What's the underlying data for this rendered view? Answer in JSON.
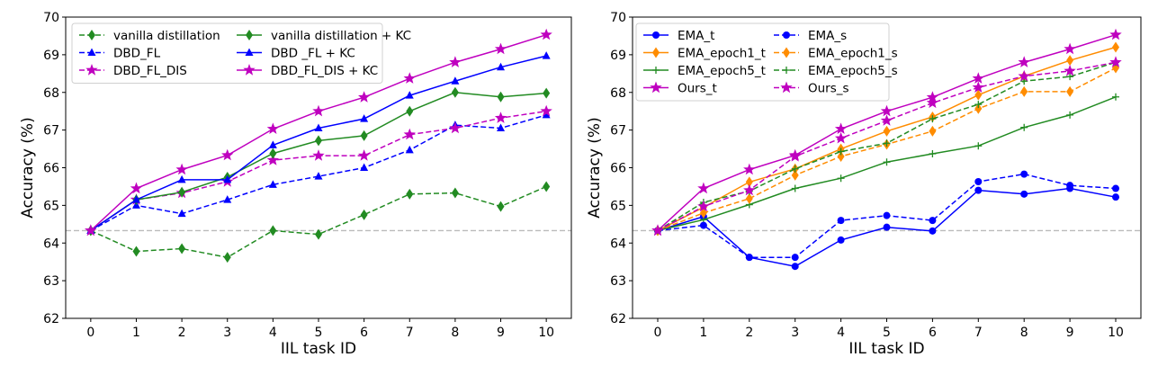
{
  "chart_data": [
    {
      "type": "line",
      "xlabel": "IIL task ID",
      "ylabel": "Accuracy (%)",
      "x": [
        0,
        1,
        2,
        3,
        4,
        5,
        6,
        7,
        8,
        9,
        10
      ],
      "xlim": [
        -0.55,
        10.55
      ],
      "ylim": [
        62,
        70
      ],
      "yticks": [
        62,
        63,
        64,
        65,
        66,
        67,
        68,
        69,
        70
      ],
      "grid": false,
      "legend_position": "top-left",
      "legend_columns": 2,
      "reference_line": {
        "y": 64.33,
        "color": "#bbbbbb",
        "style": "dashed"
      },
      "series": [
        {
          "name": "vanilla distillation",
          "color": "#228b22",
          "style": "dashed",
          "marker": "diamond",
          "values": [
            64.33,
            63.78,
            63.85,
            63.62,
            64.33,
            64.23,
            64.75,
            65.3,
            65.33,
            64.97,
            65.5
          ]
        },
        {
          "name": "DBD_FL",
          "color": "#0000ff",
          "style": "dashed",
          "marker": "triangle",
          "values": [
            64.33,
            65.0,
            64.78,
            65.15,
            65.55,
            65.77,
            66.0,
            66.47,
            67.13,
            67.05,
            67.4
          ]
        },
        {
          "name": "DBD_FL_DIS",
          "color": "#bf00bf",
          "style": "dashed",
          "marker": "star",
          "values": [
            64.33,
            65.15,
            65.33,
            65.63,
            66.2,
            66.32,
            66.32,
            66.88,
            67.05,
            67.32,
            67.5
          ]
        },
        {
          "name": "vanilla distillation + KC",
          "color": "#228b22",
          "style": "solid",
          "marker": "diamond",
          "values": [
            64.33,
            65.15,
            65.35,
            65.75,
            66.38,
            66.72,
            66.85,
            67.5,
            68.0,
            67.88,
            67.98
          ]
        },
        {
          "name": "DBD _FL + KC",
          "color": "#0000ff",
          "style": "solid",
          "marker": "triangle",
          "values": [
            64.33,
            65.15,
            65.68,
            65.68,
            66.6,
            67.05,
            67.3,
            67.92,
            68.3,
            68.67,
            68.97
          ]
        },
        {
          "name": "DBD_FL_DIS + KC",
          "color": "#bf00bf",
          "style": "solid",
          "marker": "star",
          "values": [
            64.33,
            65.45,
            65.95,
            66.33,
            67.03,
            67.5,
            67.87,
            68.37,
            68.8,
            69.15,
            69.53
          ]
        }
      ]
    },
    {
      "type": "line",
      "xlabel": "IIL task ID",
      "ylabel": "Accuracy (%)",
      "x": [
        0,
        1,
        2,
        3,
        4,
        5,
        6,
        7,
        8,
        9,
        10
      ],
      "xlim": [
        -0.55,
        10.55
      ],
      "ylim": [
        62,
        70
      ],
      "yticks": [
        62,
        63,
        64,
        65,
        66,
        67,
        68,
        69,
        70
      ],
      "grid": false,
      "legend_position": "top-left",
      "legend_columns": 2,
      "reference_line": {
        "y": 64.33,
        "color": "#bbbbbb",
        "style": "dashed"
      },
      "series": [
        {
          "name": "EMA_t",
          "color": "#0000ff",
          "style": "solid",
          "marker": "circle",
          "values": [
            64.33,
            64.7,
            63.62,
            63.38,
            64.08,
            64.42,
            64.32,
            65.4,
            65.3,
            65.45,
            65.22
          ]
        },
        {
          "name": "EMA_epoch1_t",
          "color": "#ff8c00",
          "style": "solid",
          "marker": "diamond",
          "values": [
            64.33,
            64.95,
            65.62,
            65.97,
            66.5,
            66.97,
            67.35,
            67.93,
            68.43,
            68.85,
            69.2
          ]
        },
        {
          "name": "EMA_epoch5_t",
          "color": "#228b22",
          "style": "solid",
          "marker": "plus",
          "values": [
            64.33,
            64.62,
            65.02,
            65.45,
            65.72,
            66.15,
            66.37,
            66.58,
            67.07,
            67.4,
            67.88
          ]
        },
        {
          "name": "Ours_t",
          "color": "#bf00bf",
          "style": "solid",
          "marker": "star",
          "values": [
            64.33,
            65.45,
            65.95,
            66.33,
            67.03,
            67.5,
            67.87,
            68.37,
            68.8,
            69.15,
            69.53
          ]
        },
        {
          "name": "EMA_s",
          "color": "#0000ff",
          "style": "dashed",
          "marker": "circle",
          "values": [
            64.33,
            64.47,
            63.62,
            63.62,
            64.6,
            64.73,
            64.6,
            65.63,
            65.83,
            65.53,
            65.45
          ]
        },
        {
          "name": "EMA_epoch1_s",
          "color": "#ff8c00",
          "style": "dashed",
          "marker": "diamond",
          "values": [
            64.33,
            64.8,
            65.18,
            65.8,
            66.3,
            66.62,
            66.97,
            67.57,
            68.02,
            68.02,
            68.65
          ]
        },
        {
          "name": "EMA_epoch5_s",
          "color": "#228b22",
          "style": "dashed",
          "marker": "plus",
          "values": [
            64.33,
            65.08,
            65.38,
            65.97,
            66.43,
            66.65,
            67.3,
            67.68,
            68.3,
            68.42,
            68.8
          ]
        },
        {
          "name": "Ours_s",
          "color": "#bf00bf",
          "style": "dashed",
          "marker": "star",
          "values": [
            64.33,
            64.97,
            65.4,
            66.3,
            66.78,
            67.25,
            67.72,
            68.13,
            68.43,
            68.57,
            68.8
          ]
        }
      ]
    }
  ]
}
